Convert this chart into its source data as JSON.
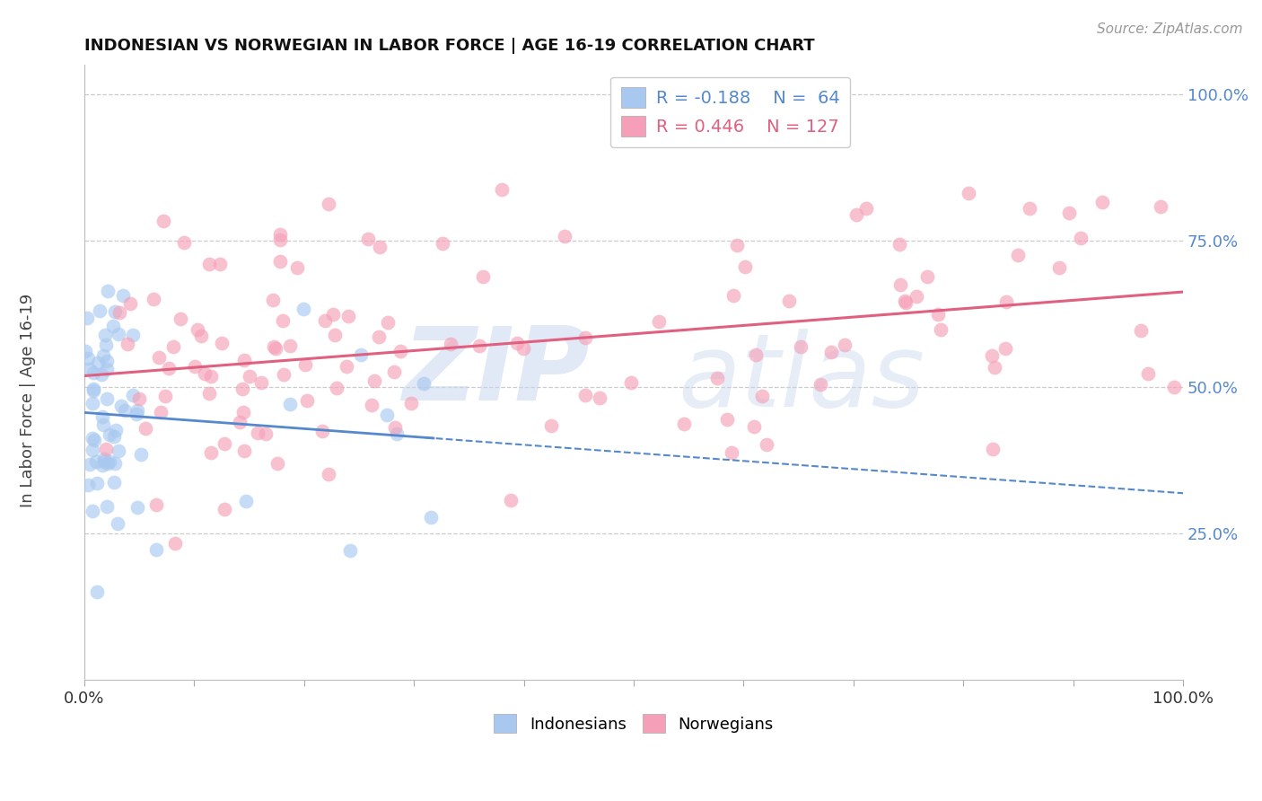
{
  "title": "INDONESIAN VS NORWEGIAN IN LABOR FORCE | AGE 16-19 CORRELATION CHART",
  "source_text": "Source: ZipAtlas.com",
  "ylabel": "In Labor Force | Age 16-19",
  "indonesian_color": "#A8C8F0",
  "norwegian_color": "#F5A0B8",
  "indonesian_line_color": "#5588CC",
  "norwegian_line_color": "#E06080",
  "indonesian_R": -0.188,
  "indonesian_N": 64,
  "norwegian_R": 0.446,
  "norwegian_N": 127,
  "watermark_zip": "ZIP",
  "watermark_atlas": "atlas",
  "ytick_positions": [
    0.25,
    0.5,
    0.75,
    1.0
  ],
  "ytick_labels": [
    "25.0%",
    "50.0%",
    "75.0%",
    "100.0%"
  ],
  "grid_color": "#CCCCCC",
  "seed_indo": 17,
  "seed_norw": 42
}
